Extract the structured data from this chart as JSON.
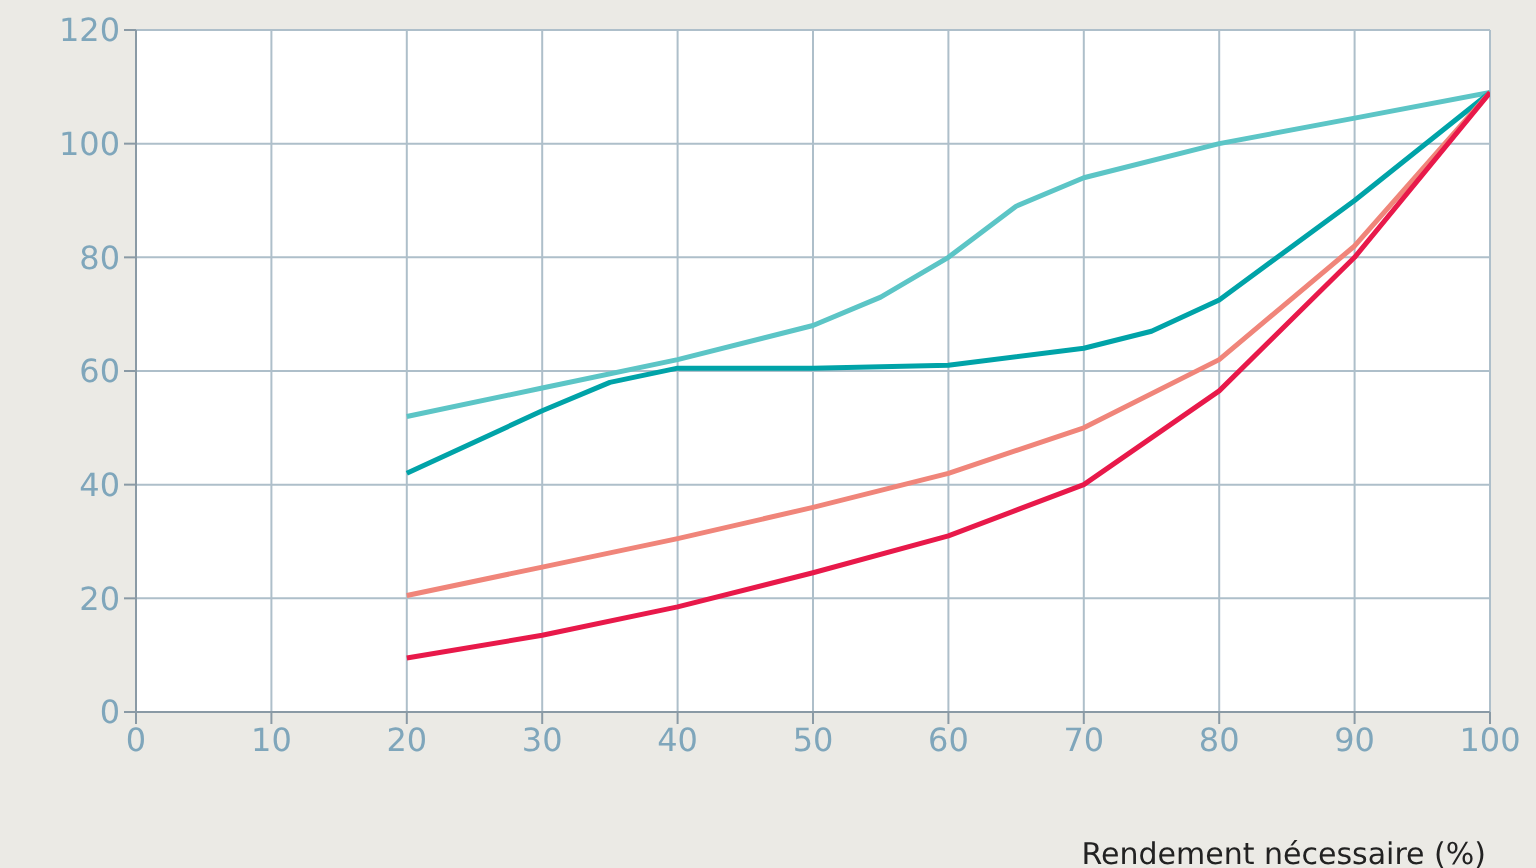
{
  "chart_data": {
    "type": "line",
    "xlabel": "Rendement nécessaire (%)",
    "xlim": [
      0,
      100
    ],
    "xticks": [
      0,
      10,
      20,
      30,
      40,
      50,
      60,
      70,
      80,
      90,
      100
    ],
    "ylim": [
      0,
      120
    ],
    "yticks": [
      0,
      20,
      40,
      60,
      80,
      100,
      120
    ],
    "grid": true,
    "marker": "none",
    "line_style": "solid",
    "series": [
      {
        "color": "#5cc5c6",
        "x": [
          20,
          30,
          40,
          50,
          55,
          60,
          65,
          70,
          80,
          90,
          100
        ],
        "values": [
          52,
          57,
          62,
          68,
          73,
          80,
          89,
          94,
          100,
          104.5,
          109
        ]
      },
      {
        "color": "#00a3a8",
        "x": [
          20,
          30,
          35,
          40,
          50,
          60,
          70,
          75,
          80,
          90,
          100
        ],
        "values": [
          42,
          53,
          58,
          60.5,
          60.5,
          61,
          64,
          67,
          72.5,
          90,
          109
        ]
      },
      {
        "color": "#f0857a",
        "x": [
          20,
          30,
          40,
          50,
          60,
          70,
          80,
          90,
          100
        ],
        "values": [
          20.5,
          25.5,
          30.5,
          36,
          42,
          50,
          62,
          82,
          109
        ]
      },
      {
        "color": "#e8194a",
        "x": [
          20,
          30,
          40,
          50,
          60,
          70,
          80,
          90,
          100
        ],
        "values": [
          9.5,
          13.5,
          18.5,
          24.5,
          31,
          40,
          56.5,
          80,
          109
        ]
      }
    ]
  }
}
